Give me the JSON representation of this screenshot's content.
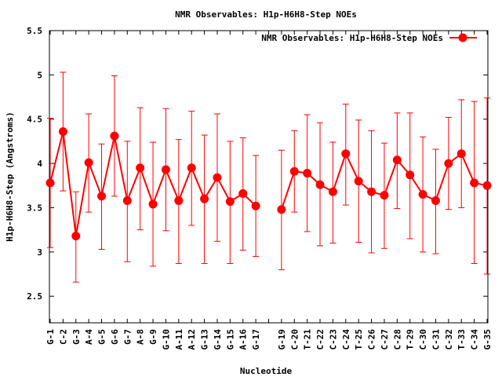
{
  "chart_data": {
    "type": "line",
    "title": "NMR Observables: H1p-H6H8-Step NOEs",
    "xlabel": "Nucleotide",
    "ylabel": "H1p-H6H8-Step (Angstroms)",
    "ylim": [
      2.2,
      5.5
    ],
    "yticks": [
      2.5,
      3,
      3.5,
      4,
      4.5,
      5,
      5.5
    ],
    "ytick_labels": [
      "2.5",
      "3",
      "3.5",
      "4",
      "4.5",
      "5",
      "5.5"
    ],
    "legend_position": "top-right",
    "grid": false,
    "color": "#ff0000",
    "categories": [
      "G-1",
      "C-2",
      "G-3",
      "A-4",
      "G-5",
      "G-6",
      "G-7",
      "A-8",
      "G-9",
      "G-10",
      "A-11",
      "A-12",
      "G-13",
      "G-14",
      "G-15",
      "A-16",
      "G-17",
      "",
      "G-19",
      "C-20",
      "T-21",
      "C-22",
      "C-23",
      "C-24",
      "T-25",
      "C-26",
      "C-27",
      "C-28",
      "T-29",
      "C-30",
      "C-31",
      "C-32",
      "T-33",
      "C-34",
      "G-35"
    ],
    "series": [
      {
        "name": "NMR Observables: H1p-H6H8-Step NOEs",
        "values": [
          3.78,
          4.36,
          3.18,
          4.01,
          3.63,
          4.31,
          3.58,
          3.95,
          3.54,
          3.93,
          3.58,
          3.95,
          3.6,
          3.84,
          3.57,
          3.66,
          3.52,
          null,
          3.48,
          3.91,
          3.89,
          3.76,
          3.68,
          4.11,
          3.8,
          3.68,
          3.64,
          4.04,
          3.87,
          3.65,
          3.58,
          4.0,
          4.11,
          3.78,
          3.75
        ],
        "error_low": [
          3.05,
          3.69,
          2.66,
          3.45,
          3.03,
          3.63,
          2.89,
          3.25,
          2.84,
          3.24,
          2.87,
          3.3,
          2.87,
          3.12,
          2.87,
          3.02,
          2.95,
          null,
          2.8,
          3.45,
          3.23,
          3.07,
          3.1,
          3.53,
          3.11,
          2.99,
          3.04,
          3.49,
          3.15,
          3.0,
          2.98,
          3.48,
          3.5,
          2.87,
          2.75
        ],
        "error_high": [
          4.51,
          5.03,
          3.68,
          4.56,
          4.22,
          4.99,
          4.25,
          4.63,
          4.24,
          4.62,
          4.27,
          4.59,
          4.32,
          4.56,
          4.25,
          4.29,
          4.09,
          null,
          4.15,
          4.37,
          4.55,
          4.46,
          4.24,
          4.67,
          4.49,
          4.37,
          4.23,
          4.57,
          4.57,
          4.3,
          4.16,
          4.52,
          4.72,
          4.7,
          4.74
        ]
      }
    ]
  }
}
